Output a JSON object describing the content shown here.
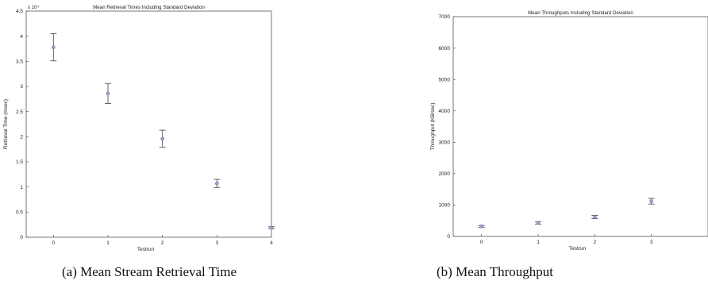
{
  "chart_data": [
    {
      "type": "scatter",
      "title": "Mean Retrieval Times Including Standard Deviation",
      "xlabel": "Testrun",
      "ylabel": "Retrieval Time (msec)",
      "y_multiplier_label": "x 10⁴",
      "xlim": [
        -0.5,
        4.0
      ],
      "ylim": [
        0,
        4.5
      ],
      "xticks": [
        "0",
        "1",
        "2",
        "3",
        "4"
      ],
      "yticks": [
        "0",
        "0.5",
        "1",
        "1.5",
        "2",
        "2.5",
        "3",
        "3.5",
        "4",
        "4.5"
      ],
      "grid": false,
      "points": [
        {
          "x": 0,
          "y": 3.78,
          "err": 0.27
        },
        {
          "x": 1,
          "y": 2.86,
          "err": 0.2
        },
        {
          "x": 2,
          "y": 1.96,
          "err": 0.17
        },
        {
          "x": 3,
          "y": 1.07,
          "err": 0.08
        },
        {
          "x": 4,
          "y": 0.19,
          "err": 0.02
        }
      ]
    },
    {
      "type": "scatter",
      "title": "Mean Throughputs Including Standard Deviation",
      "xlabel": "Testrun",
      "ylabel": "Throughput (KB/sec)",
      "xlim": [
        -0.5,
        4.0
      ],
      "ylim": [
        0,
        7000
      ],
      "xticks": [
        "0",
        "1",
        "2",
        "3"
      ],
      "yticks": [
        "0",
        "1000",
        "2000",
        "3000",
        "4000",
        "5000",
        "6000",
        "7000"
      ],
      "grid": false,
      "points": [
        {
          "x": 0,
          "y": 320,
          "err": 30
        },
        {
          "x": 1,
          "y": 430,
          "err": 40
        },
        {
          "x": 2,
          "y": 620,
          "err": 50
        },
        {
          "x": 3,
          "y": 1120,
          "err": 90
        }
      ]
    }
  ],
  "captions": {
    "a": "(a) Mean Stream Retrieval Time",
    "b": "(b) Mean Throughput"
  }
}
